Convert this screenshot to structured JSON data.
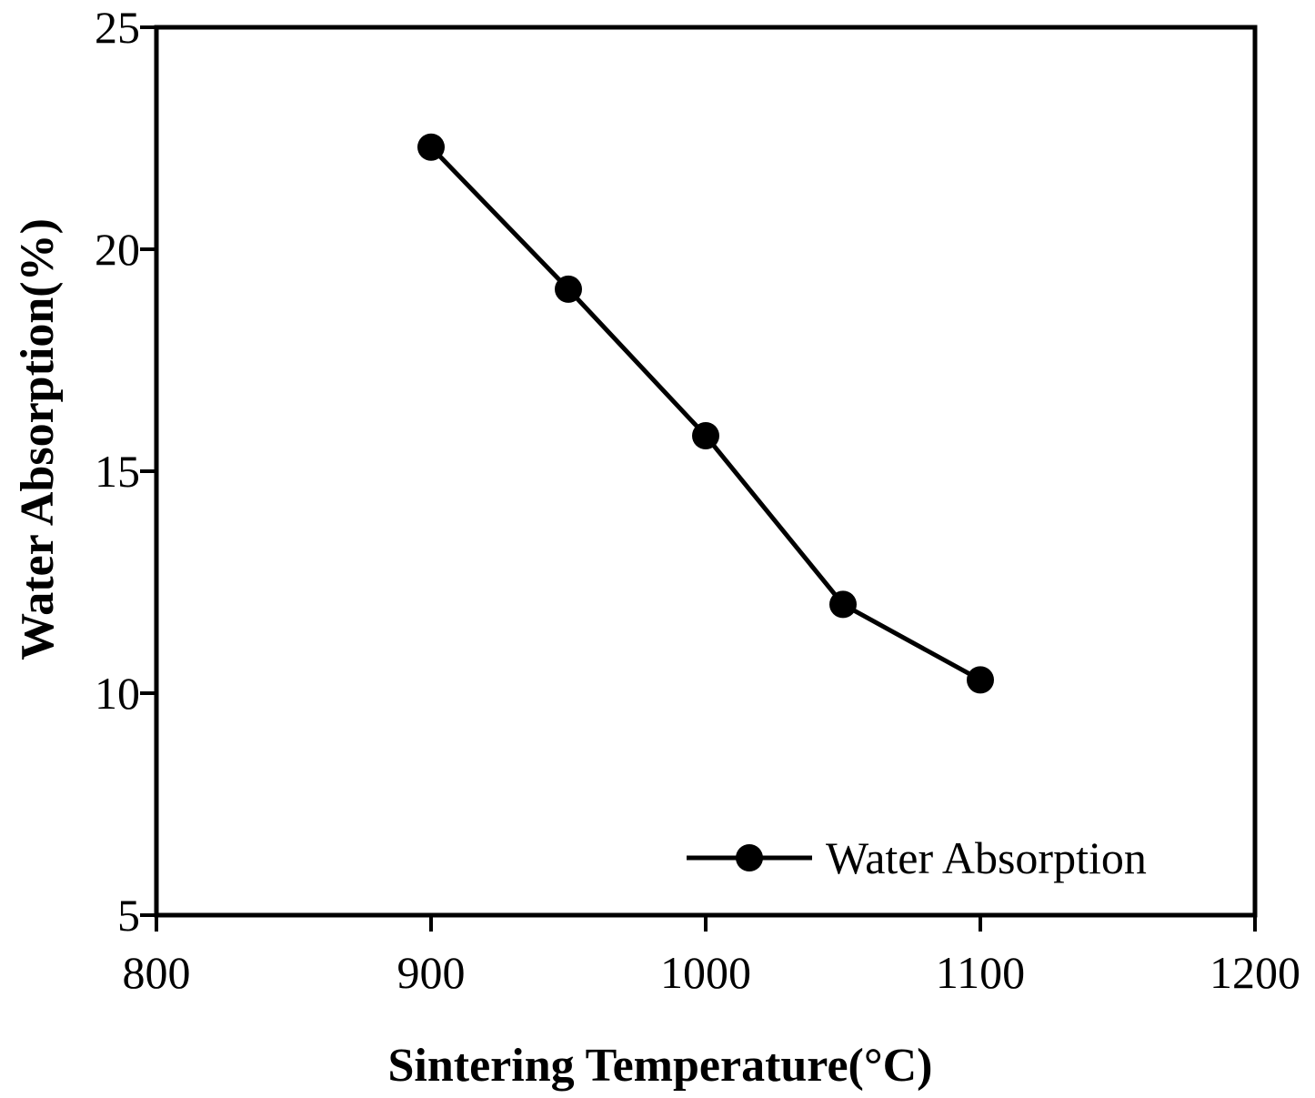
{
  "chart_data": {
    "type": "line",
    "title": "",
    "xlabel": "Sintering Temperature(°C)",
    "ylabel": "Water Absorption(%)",
    "xlim": [
      800,
      1200
    ],
    "ylim": [
      5,
      25
    ],
    "xticks": [
      800,
      900,
      1000,
      1100,
      1200
    ],
    "yticks": [
      5,
      10,
      15,
      20,
      25
    ],
    "grid": false,
    "legend_position": "bottom-right",
    "series": [
      {
        "name": "Water Absorption",
        "color": "#000000",
        "marker": "circle",
        "x": [
          900,
          950,
          1000,
          1050,
          1100
        ],
        "y": [
          22.3,
          19.1,
          15.8,
          12.0,
          10.3
        ]
      }
    ]
  }
}
